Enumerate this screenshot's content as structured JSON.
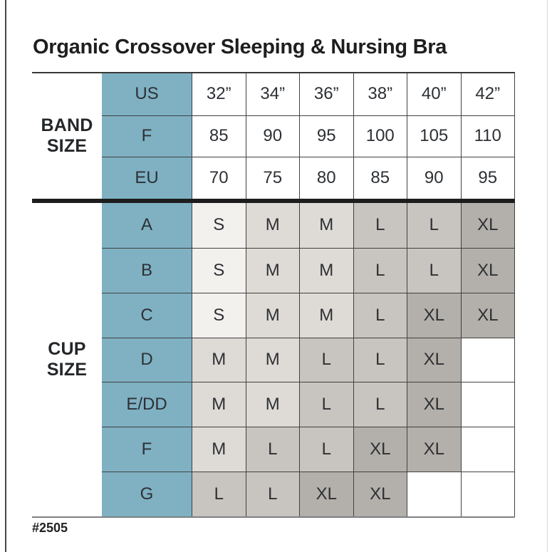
{
  "page": {
    "title": "Organic Crossover Sleeping & Nursing Bra",
    "footnote": "#2505"
  },
  "chart_data": {
    "type": "table",
    "title": "Organic Crossover Sleeping & Nursing Bra",
    "band_label_lines": [
      "BAND",
      "SIZE"
    ],
    "cup_label_lines": [
      "CUP",
      "SIZE"
    ],
    "band_rows": [
      {
        "key": "US",
        "values": [
          "32”",
          "34”",
          "36”",
          "38”",
          "40”",
          "42”"
        ]
      },
      {
        "key": "F",
        "values": [
          "85",
          "90",
          "95",
          "100",
          "105",
          "110"
        ]
      },
      {
        "key": "EU",
        "values": [
          "70",
          "75",
          "80",
          "85",
          "90",
          "95"
        ]
      }
    ],
    "cup_rows": [
      {
        "key": "A",
        "values": [
          "S",
          "M",
          "M",
          "L",
          "L",
          "XL"
        ]
      },
      {
        "key": "B",
        "values": [
          "S",
          "M",
          "M",
          "L",
          "L",
          "XL"
        ]
      },
      {
        "key": "C",
        "values": [
          "S",
          "M",
          "M",
          "L",
          "XL",
          "XL"
        ]
      },
      {
        "key": "D",
        "values": [
          "M",
          "M",
          "L",
          "L",
          "XL",
          ""
        ]
      },
      {
        "key": "E/DD",
        "values": [
          "M",
          "M",
          "L",
          "L",
          "XL",
          ""
        ]
      },
      {
        "key": "F",
        "values": [
          "M",
          "L",
          "L",
          "XL",
          "XL",
          ""
        ]
      },
      {
        "key": "G",
        "values": [
          "L",
          "L",
          "XL",
          "XL",
          "",
          ""
        ]
      }
    ],
    "legend_note": "cell shading encodes garment size S < M < L < XL"
  },
  "colors": {
    "accent_teal": "#7fb1c3",
    "size_s": "#f3f1ee",
    "size_m": "#dedad5",
    "size_l": "#c8c4bf",
    "size_xl": "#b3afaa",
    "grid_line": "#414141",
    "section_divider": "#1d1d1d",
    "table_top_line": "#383838",
    "table_bottom_line": "#7d8184",
    "text": "#2d3034"
  }
}
